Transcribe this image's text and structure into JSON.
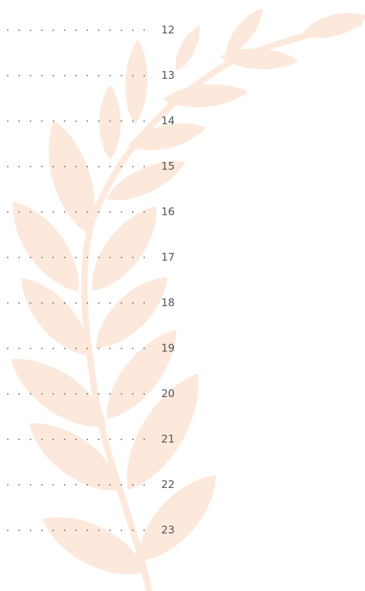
{
  "toc": {
    "pages": [
      12,
      13,
      14,
      15,
      16,
      17,
      18,
      19,
      20,
      21,
      22,
      23
    ]
  }
}
